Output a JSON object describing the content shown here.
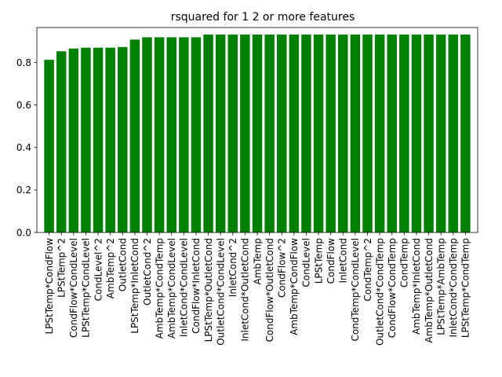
{
  "chart_data": {
    "type": "bar",
    "title": "rsquared for 1 2 or more features",
    "xlabel": "",
    "ylabel": "",
    "ylim": [
      0,
      0.965
    ],
    "yticks": [
      "0.0",
      "0.2",
      "0.4",
      "0.6",
      "0.8"
    ],
    "bar_color": "#008000",
    "grid": false,
    "categories": [
      "LPStTemp*CondFlow",
      "LPStTemp^2",
      "CondFlow*CondLevel",
      "LPStTemp*CondLevel",
      "CondLevel^2",
      "AmbTemp^2",
      "OutletCond",
      "LPStTemp*InletCond",
      "OutletCond^2",
      "AmbTemp*CondTemp",
      "AmbTemp*CondLevel",
      "InletCond*CondLevel",
      "CondFlow*InletCond",
      "LPStTemp*OutletCond",
      "OutletCond*CondLevel",
      "InletCond^2",
      "InletCond*OutletCond",
      "AmbTemp",
      "CondFlow*OutletCond",
      "CondFlow^2",
      "AmbTemp*CondFlow",
      "CondLevel",
      "LPStTemp",
      "CondFlow",
      "InletCond",
      "CondTemp*CondLevel",
      "CondTemp^2",
      "OutletCond*CondTemp",
      "CondFlow*CondTemp",
      "CondTemp",
      "AmbTemp*InletCond",
      "AmbTemp*OutletCond",
      "LPStTemp*AmbTemp",
      "InletCond*CondTemp",
      "LPStTemp*CondTemp"
    ],
    "values": [
      0.813,
      0.853,
      0.866,
      0.87,
      0.87,
      0.87,
      0.873,
      0.908,
      0.919,
      0.919,
      0.919,
      0.919,
      0.919,
      0.932,
      0.932,
      0.932,
      0.932,
      0.932,
      0.932,
      0.932,
      0.932,
      0.932,
      0.932,
      0.932,
      0.932,
      0.932,
      0.932,
      0.932,
      0.932,
      0.932,
      0.932,
      0.932,
      0.932,
      0.932,
      0.932
    ]
  }
}
